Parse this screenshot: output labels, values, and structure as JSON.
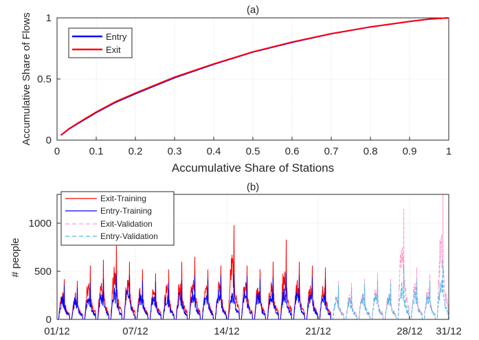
{
  "chart_data": [
    {
      "type": "line",
      "title": "(a)",
      "xlabel": "Accumulative Share of Stations",
      "ylabel": "Accumulative Share of Flows",
      "xlim": [
        0,
        1
      ],
      "ylim": [
        0,
        1
      ],
      "xticks": [
        "0",
        "0.1",
        "0.2",
        "0.3",
        "0.4",
        "0.5",
        "0.6",
        "0.7",
        "0.8",
        "0.9",
        "1"
      ],
      "yticks": [
        "0",
        "0.5",
        "1"
      ],
      "grid": true,
      "legend": "top-left",
      "series": [
        {
          "name": "Entry",
          "color": "#0000ff",
          "x": [
            0.01,
            0.03,
            0.05,
            0.1,
            0.15,
            0.2,
            0.3,
            0.4,
            0.5,
            0.6,
            0.7,
            0.8,
            0.9,
            0.95,
            1.0
          ],
          "y": [
            0.04,
            0.09,
            0.13,
            0.225,
            0.31,
            0.38,
            0.51,
            0.62,
            0.72,
            0.8,
            0.87,
            0.925,
            0.97,
            0.99,
            1.0
          ]
        },
        {
          "name": "Exit",
          "color": "#ff0000",
          "x": [
            0.01,
            0.03,
            0.05,
            0.1,
            0.15,
            0.2,
            0.3,
            0.4,
            0.5,
            0.6,
            0.7,
            0.8,
            0.9,
            0.95,
            1.0
          ],
          "y": [
            0.04,
            0.092,
            0.133,
            0.23,
            0.315,
            0.385,
            0.515,
            0.623,
            0.722,
            0.802,
            0.871,
            0.926,
            0.971,
            0.99,
            1.0
          ]
        }
      ]
    },
    {
      "type": "line",
      "title": "(b)",
      "xlabel": "",
      "ylabel": "# people",
      "xlim": [
        0,
        30
      ],
      "ylim": [
        0,
        1300
      ],
      "yticks": [
        0,
        500,
        1000
      ],
      "xtick_positions": [
        0,
        6,
        13,
        20,
        27,
        30
      ],
      "xtick_labels": [
        "01/12",
        "07/12",
        "14/12",
        "21/12",
        "28/12",
        "31/12"
      ],
      "grid": true,
      "legend": "top-left",
      "series": [
        {
          "name": "Exit-Training",
          "color": "#ff0000",
          "style": "solid",
          "days": [
            0,
            21
          ],
          "day_peaks": [
            420,
            400,
            560,
            620,
            780,
            600,
            520,
            480,
            520,
            600,
            650,
            520,
            560,
            980,
            560,
            520,
            600,
            830,
            600,
            560,
            540
          ]
        },
        {
          "name": "Entry-Training",
          "color": "#0000ff",
          "style": "solid",
          "days": [
            0,
            21
          ],
          "day_peaks": [
            360,
            330,
            380,
            420,
            460,
            460,
            400,
            390,
            380,
            410,
            460,
            420,
            460,
            470,
            450,
            420,
            440,
            480,
            460,
            440,
            420
          ]
        },
        {
          "name": "Exit-Validation",
          "color": "#ff99cc",
          "style": "dashed",
          "days": [
            21,
            30
          ],
          "day_peaks": [
            400,
            380,
            430,
            480,
            420,
            1150,
            540,
            470,
            1300
          ]
        },
        {
          "name": "Entry-Validation",
          "color": "#4db8e8",
          "style": "dashed",
          "days": [
            21,
            30
          ],
          "day_peaks": [
            350,
            330,
            380,
            400,
            380,
            560,
            420,
            400,
            620
          ]
        }
      ]
    }
  ]
}
